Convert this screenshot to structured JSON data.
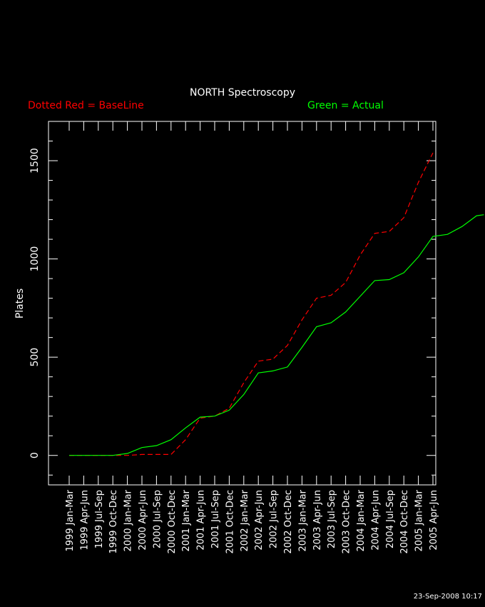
{
  "title": "NORTH Spectroscopy",
  "legend_left": "Dotted Red = BaseLine",
  "legend_right": "Green = Actual",
  "timestamp": "23-Sep-2008 10:17",
  "colors": {
    "background": "#000000",
    "axes": "#ffffff",
    "baseline": "#ff0000",
    "actual": "#00ff00"
  },
  "chart_data": {
    "type": "line",
    "title": "NORTH Spectroscopy",
    "xlabel": "",
    "ylabel": "Plates",
    "ylim": [
      -150,
      1700
    ],
    "yticks": [
      0,
      500,
      1000,
      1500
    ],
    "categories": [
      "1999 Jan-Mar",
      "1999 Apr-Jun",
      "1999 Jul-Sep",
      "1999 Oct-Dec",
      "2000 Jan-Mar",
      "2000 Apr-Jun",
      "2000 Jul-Sep",
      "2000 Oct-Dec",
      "2001 Jan-Mar",
      "2001 Apr-Jun",
      "2001 Jul-Sep",
      "2001 Oct-Dec",
      "2002 Jan-Mar",
      "2002 Apr-Jun",
      "2002 Jul-Sep",
      "2002 Oct-Dec",
      "2003 Jan-Mar",
      "2003 Apr-Jun",
      "2003 Jul-Sep",
      "2003 Oct-Dec",
      "2004 Jan-Mar",
      "2004 Apr-Jun",
      "2004 Jul-Sep",
      "2004 Oct-Dec",
      "2005 Jan-Mar",
      "2005 Apr-Jun"
    ],
    "series": [
      {
        "style": "dashed",
        "color": "#ff0000",
        "x": [
          0,
          4,
          5,
          6,
          7,
          8,
          9,
          10,
          11,
          12,
          13,
          14,
          15,
          16,
          17,
          18,
          19,
          20,
          21,
          22,
          23,
          24,
          25
        ],
        "values": [
          0,
          0,
          5,
          5,
          5,
          80,
          190,
          200,
          240,
          370,
          480,
          490,
          560,
          690,
          800,
          815,
          880,
          1020,
          1130,
          1140,
          1210,
          1390,
          1540
        ]
      },
      {
        "style": "solid",
        "color": "#00ff00",
        "x": [
          0,
          1,
          2,
          3,
          4,
          5,
          6,
          7,
          8,
          9,
          10,
          11,
          12,
          13,
          14,
          15,
          16,
          17,
          18,
          19,
          20,
          21,
          22,
          23,
          24,
          25,
          26,
          27,
          28,
          28.5
        ],
        "values": [
          0,
          0,
          0,
          0,
          10,
          40,
          50,
          80,
          140,
          195,
          200,
          230,
          310,
          420,
          430,
          450,
          550,
          655,
          675,
          730,
          810,
          890,
          895,
          930,
          1010,
          1115,
          1125,
          1165,
          1220,
          1225
        ]
      }
    ]
  }
}
